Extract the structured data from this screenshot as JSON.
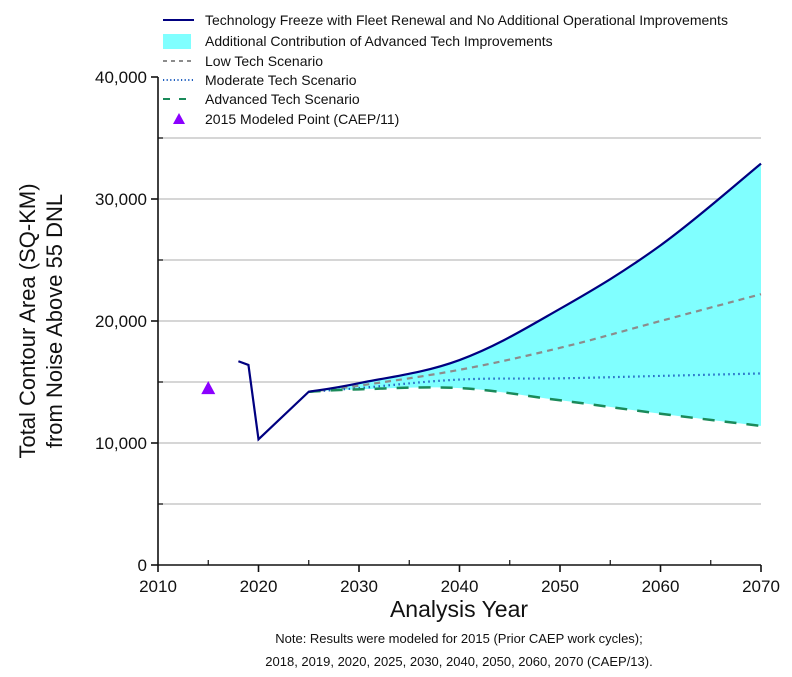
{
  "chart_data": {
    "type": "line",
    "xlabel": "Analysis Year",
    "ylabel_line1": "Total Contour Area (SQ-KM)",
    "ylabel_line2": "from Noise Above 55 DNL",
    "xlim": [
      2010,
      2070
    ],
    "ylim": [
      0,
      40000
    ],
    "x_ticks": [
      2010,
      2020,
      2030,
      2040,
      2050,
      2060,
      2070
    ],
    "x_tick_labels": [
      "2010",
      "2020",
      "2030",
      "2040",
      "2050",
      "2060",
      "2070"
    ],
    "y_ticks": [
      0,
      10000,
      20000,
      30000,
      40000
    ],
    "y_tick_labels": [
      "0",
      "10,000",
      "20,000",
      "30,000",
      "40,000"
    ],
    "y_grid": [
      5000,
      10000,
      15000,
      20000,
      25000,
      30000,
      35000
    ],
    "grid": true,
    "legend_position": "top",
    "series": [
      {
        "name": "Technology Freeze with Fleet Renewal and No Additional Operational Improvements",
        "style": "solid",
        "color": "#000080",
        "x": [
          2018,
          2019,
          2020,
          2025,
          2030,
          2040,
          2050,
          2060,
          2070
        ],
        "values": [
          16700,
          16400,
          10300,
          14200,
          14900,
          16800,
          21000,
          26200,
          32900
        ]
      },
      {
        "name": "Low Tech Scenario",
        "style": "dash",
        "color": "#8c8c8c",
        "x": [
          2025,
          2030,
          2040,
          2050,
          2060,
          2070
        ],
        "values": [
          14200,
          14700,
          16000,
          17800,
          20000,
          22200
        ]
      },
      {
        "name": "Moderate Tech Scenario",
        "style": "dot",
        "color": "#1f5fbf",
        "x": [
          2025,
          2030,
          2040,
          2050,
          2060,
          2070
        ],
        "values": [
          14200,
          14500,
          15200,
          15300,
          15500,
          15700
        ]
      },
      {
        "name": "Advanced Tech Scenario",
        "style": "longdash",
        "color": "#1a8a5a",
        "x": [
          2025,
          2030,
          2040,
          2050,
          2060,
          2070
        ],
        "values": [
          14200,
          14400,
          14500,
          13500,
          12400,
          11400
        ]
      }
    ],
    "area": {
      "name": "Additional Contribution of Advanced Tech Improvements",
      "color": "#80ffff",
      "between": [
        "Technology Freeze with Fleet Renewal and No Additional Operational Improvements",
        "Advanced Tech Scenario"
      ]
    },
    "points": [
      {
        "name": "2015 Modeled Point (CAEP/11)",
        "x": 2015,
        "y": 14500,
        "color": "#8b00ff",
        "marker": "triangle"
      }
    ],
    "note_line1": "Note: Results were modeled for 2015 (Prior CAEP work cycles);",
    "note_line2": "2018, 2019, 2020, 2025, 2030, 2040, 2050, 2060, 2070 (CAEP/13)."
  }
}
